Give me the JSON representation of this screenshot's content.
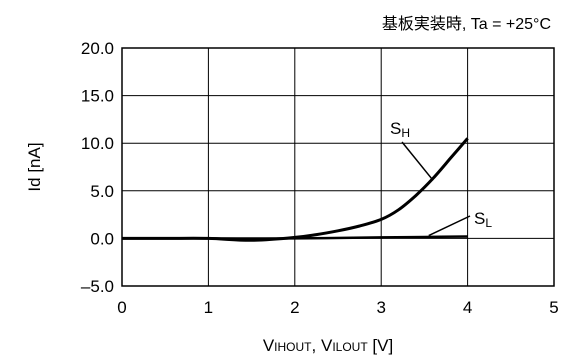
{
  "chart_data": {
    "type": "line",
    "title": "基板実装時, Ta = +25°C",
    "xlabel": "VIHOUT, VILOUT [V]",
    "xlabel_parts": [
      {
        "main": "V",
        "sub": "IHOUT"
      },
      {
        "main": ", V",
        "sub": "ILOUT"
      },
      {
        "main": " [V]",
        "sub": ""
      }
    ],
    "ylabel": "Id [nA]",
    "xlim": [
      0,
      5
    ],
    "ylim": [
      -5,
      20
    ],
    "x_ticks": [
      0,
      1,
      2,
      3,
      4,
      5
    ],
    "x_tick_labels": [
      "0",
      "1",
      "2",
      "3",
      "4",
      "5"
    ],
    "y_ticks": [
      20,
      15,
      10,
      5,
      0,
      -5
    ],
    "y_tick_labels": [
      "20.0",
      "15.0",
      "10.0",
      "5.0",
      "0.0",
      "–5.0"
    ],
    "grid": true,
    "series": [
      {
        "name": "SH",
        "label_main": "S",
        "label_sub": "H",
        "x": [
          0,
          0.5,
          1.0,
          1.5,
          2.0,
          2.25,
          2.5,
          2.75,
          3.0,
          3.2,
          3.4,
          3.6,
          3.8,
          4.0
        ],
        "y": [
          0,
          0,
          0,
          -0.2,
          0.1,
          0.4,
          0.8,
          1.3,
          2.0,
          3.0,
          4.5,
          6.3,
          8.4,
          10.5
        ]
      },
      {
        "name": "SL",
        "label_main": "S",
        "label_sub": "L",
        "x": [
          0,
          1.0,
          2.0,
          3.0,
          3.5,
          4.0
        ],
        "y": [
          0,
          0,
          0,
          0.1,
          0.15,
          0.2
        ]
      }
    ]
  }
}
